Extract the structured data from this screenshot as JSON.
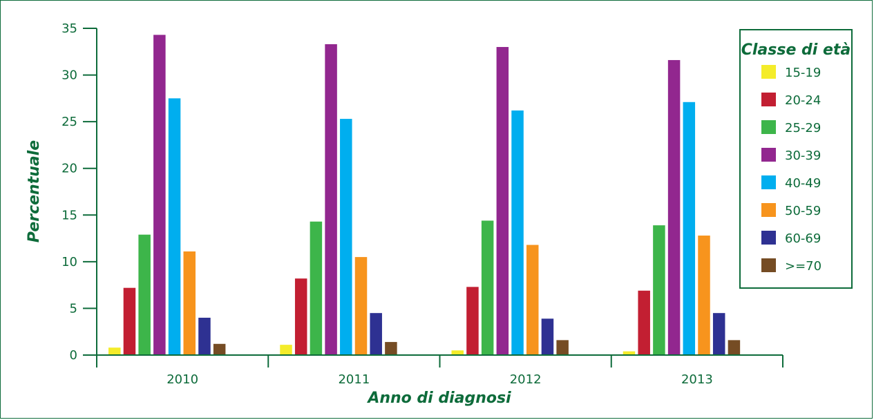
{
  "chart_data": {
    "type": "bar",
    "title": "",
    "xlabel": "Anno di diagnosi",
    "ylabel": "Percentuale",
    "ylim": [
      0,
      35
    ],
    "yticks": [
      0,
      5,
      10,
      15,
      20,
      25,
      30,
      35
    ],
    "grid": false,
    "legend_title": "Classe di età",
    "legend_position": "top-right",
    "categories": [
      "2010",
      "2011",
      "2012",
      "2013"
    ],
    "series": [
      {
        "name": "15-19",
        "color": "#f4ec2a",
        "values": [
          0.8,
          1.1,
          0.5,
          0.4
        ]
      },
      {
        "name": "20-24",
        "color": "#c21f32",
        "values": [
          7.2,
          8.2,
          7.3,
          6.9
        ]
      },
      {
        "name": "25-29",
        "color": "#3db54a",
        "values": [
          12.9,
          14.3,
          14.4,
          13.9
        ]
      },
      {
        "name": "30-39",
        "color": "#92278f",
        "values": [
          34.3,
          33.3,
          33.0,
          31.6
        ]
      },
      {
        "name": "40-49",
        "color": "#00aeef",
        "values": [
          27.5,
          25.3,
          26.2,
          27.1
        ]
      },
      {
        "name": "50-59",
        "color": "#f7941d",
        "values": [
          11.1,
          10.5,
          11.8,
          12.8
        ]
      },
      {
        "name": "60-69",
        "color": "#2e3192",
        "values": [
          4.0,
          4.5,
          3.9,
          4.5
        ]
      },
      {
        "name": ">=70",
        "color": "#754c24",
        "values": [
          1.2,
          1.4,
          1.6,
          1.6
        ]
      }
    ],
    "axis_color": "#0d6b3a"
  }
}
